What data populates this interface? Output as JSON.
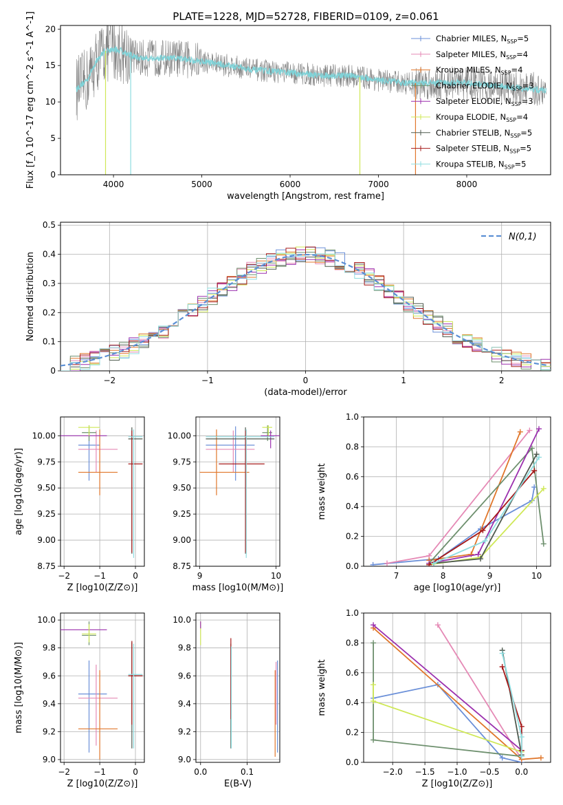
{
  "title": "PLATE=1228, MJD=52728, FIBERID=0109, z=0.061",
  "legend_models": [
    {
      "name": "Chabrier MILES",
      "nssp": "5",
      "color": "#6a8fd8"
    },
    {
      "name": "Salpeter MILES",
      "nssp": "4",
      "color": "#e589b5"
    },
    {
      "name": "Kroupa MILES",
      "nssp": "4",
      "color": "#e0762a"
    },
    {
      "name": "Chabrier ELODIE",
      "nssp": "3",
      "color": "#6d8f6d"
    },
    {
      "name": "Salpeter ELODIE",
      "nssp": "3",
      "color": "#9b2fae"
    },
    {
      "name": "Kroupa ELODIE",
      "nssp": "4",
      "color": "#cfe856"
    },
    {
      "name": "Chabrier STELIB",
      "nssp": "5",
      "color": "#4f5a4f"
    },
    {
      "name": "Salpeter STELIB",
      "nssp": "5",
      "color": "#a51818"
    },
    {
      "name": "Kroupa STELIB",
      "nssp": "5",
      "color": "#8fdde0"
    }
  ],
  "chart_data": [
    {
      "id": "spectrum",
      "type": "line",
      "xlabel": "wavelength [Angstrom, rest frame]",
      "ylabel": "Flux [f_λ 10^-17 erg cm^-2 s^-1 A^-1]",
      "xlim": [
        3400,
        8950
      ],
      "ylim": [
        0,
        20.5
      ],
      "xticks": [
        4000,
        5000,
        6000,
        7000,
        8000
      ],
      "yticks": [
        0,
        5,
        10,
        15,
        20
      ],
      "grid": false,
      "legend": "top-right",
      "data_color": "#808080",
      "model_color": "#7fd3d8",
      "continuum": [
        [
          3580,
          11.8
        ],
        [
          3700,
          13
        ],
        [
          3800,
          15.5
        ],
        [
          3900,
          17
        ],
        [
          4000,
          17.2
        ],
        [
          4100,
          17
        ],
        [
          4200,
          16.4
        ],
        [
          4300,
          16
        ],
        [
          4500,
          16
        ],
        [
          4700,
          16
        ],
        [
          5000,
          15.6
        ],
        [
          5300,
          15
        ],
        [
          5600,
          14.4
        ],
        [
          6000,
          14
        ],
        [
          6400,
          13.6
        ],
        [
          6700,
          13.6
        ],
        [
          7000,
          13
        ],
        [
          7300,
          12.6
        ],
        [
          7600,
          12.6
        ],
        [
          8000,
          12.6
        ],
        [
          8500,
          12
        ],
        [
          8950,
          11.5
        ]
      ]
    },
    {
      "id": "residuals",
      "type": "histogram",
      "xlabel": "(data-model)/error",
      "ylabel": "Normed distribution",
      "xlim": [
        -2.5,
        2.5
      ],
      "ylim": [
        0,
        0.51
      ],
      "xticks": [
        -2,
        -1,
        0,
        1,
        2
      ],
      "yticks": [
        0,
        0.1,
        0.2,
        0.3,
        0.4,
        0.5
      ],
      "grid": true,
      "legend": "top-right",
      "gaussian_label": "N(0,1)",
      "gaussian_color": "#5b8fd4"
    },
    {
      "id": "age_vs_Z",
      "type": "errorbar",
      "xlabel": "Z [log10(Z/Z⊙)]",
      "ylabel": "age [log10(age/yr)]",
      "xlim": [
        -2.1,
        0.25
      ],
      "ylim": [
        8.75,
        10.18
      ],
      "xticks": [
        -2,
        -1,
        0
      ],
      "yticks": [
        8.75,
        9.0,
        9.25,
        9.5,
        9.75,
        10.0
      ],
      "ytick_labels": [
        "8.75",
        "9.00",
        "9.25",
        "9.50",
        "9.75",
        "10.00"
      ],
      "grid": true,
      "points": [
        {
          "x": -1.3,
          "xlo": -1.6,
          "xhi": -1.0,
          "y": 9.91,
          "ylo": 9.57,
          "yhi": 10.09,
          "color": "#6a8fd8"
        },
        {
          "x": -1.1,
          "xlo": -1.6,
          "xhi": -0.5,
          "y": 9.87,
          "ylo": 9.65,
          "yhi": 10.05,
          "color": "#e589b5"
        },
        {
          "x": -1.0,
          "xlo": -1.6,
          "xhi": -0.5,
          "y": 9.65,
          "ylo": 9.43,
          "yhi": 10.06,
          "color": "#e0762a"
        },
        {
          "x": -1.3,
          "xlo": -1.5,
          "xhi": -1.1,
          "y": 10.03,
          "ylo": 9.95,
          "yhi": 10.1,
          "color": "#6d8f6d"
        },
        {
          "x": -2.0,
          "xlo": -2.1,
          "xhi": -0.8,
          "y": 10.0,
          "ylo": 10.0,
          "yhi": 10.0,
          "color": "#9b2fae"
        },
        {
          "x": -1.3,
          "xlo": -1.6,
          "xhi": -1.0,
          "y": 10.08,
          "ylo": 10.0,
          "yhi": 10.1,
          "color": "#cfe856"
        },
        {
          "x": -0.1,
          "xlo": -0.2,
          "xhi": 0.2,
          "y": 9.97,
          "ylo": 8.87,
          "yhi": 10.08,
          "color": "#4f5a4f"
        },
        {
          "x": -0.1,
          "xlo": -0.2,
          "xhi": 0.2,
          "y": 9.73,
          "ylo": 8.88,
          "yhi": 10.05,
          "color": "#a51818"
        },
        {
          "x": -0.05,
          "xlo": -0.2,
          "xhi": 0.2,
          "y": 9.99,
          "ylo": 8.83,
          "yhi": 10.06,
          "color": "#8fdde0"
        }
      ]
    },
    {
      "id": "age_vs_mass",
      "type": "errorbar",
      "xlabel": "mass [log10(M/M⊙)]",
      "ylabel": "",
      "xlim": [
        8.95,
        10.05
      ],
      "ylim": [
        8.75,
        10.18
      ],
      "xticks": [
        9,
        10
      ],
      "yticks": [
        8.75,
        9.0,
        9.25,
        9.5,
        9.75,
        10.0
      ],
      "ytick_labels": [
        "8.75",
        "9.00",
        "9.25",
        "9.50",
        "9.75",
        "10.00"
      ],
      "grid": true,
      "points": [
        {
          "x": 9.47,
          "xlo": 9.08,
          "xhi": 9.72,
          "y": 9.91,
          "ylo": 9.57,
          "yhi": 10.09,
          "color": "#6a8fd8"
        },
        {
          "x": 9.44,
          "xlo": 9.08,
          "xhi": 9.72,
          "y": 9.87,
          "ylo": 9.65,
          "yhi": 10.05,
          "color": "#e589b5"
        },
        {
          "x": 9.22,
          "xlo": 9.0,
          "xhi": 9.65,
          "y": 9.65,
          "ylo": 9.43,
          "yhi": 10.06,
          "color": "#e0762a"
        },
        {
          "x": 9.89,
          "xlo": 9.82,
          "xhi": 9.95,
          "y": 10.03,
          "ylo": 9.95,
          "yhi": 10.1,
          "color": "#6d8f6d"
        },
        {
          "x": 9.93,
          "xlo": 9.8,
          "xhi": 10.05,
          "y": 10.0,
          "ylo": 9.88,
          "yhi": 10.05,
          "color": "#9b2fae"
        },
        {
          "x": 9.9,
          "xlo": 9.82,
          "xhi": 9.95,
          "y": 10.08,
          "ylo": 10.0,
          "yhi": 10.1,
          "color": "#cfe856"
        },
        {
          "x": 9.6,
          "xlo": 9.08,
          "xhi": 9.98,
          "y": 9.97,
          "ylo": 8.87,
          "yhi": 10.08,
          "color": "#4f5a4f"
        },
        {
          "x": 9.6,
          "xlo": 9.25,
          "xhi": 9.85,
          "y": 9.73,
          "ylo": 8.88,
          "yhi": 10.05,
          "color": "#a51818"
        },
        {
          "x": 9.61,
          "xlo": 9.08,
          "xhi": 9.98,
          "y": 9.99,
          "ylo": 8.83,
          "yhi": 10.06,
          "color": "#8fdde0"
        }
      ]
    },
    {
      "id": "mass_weight_vs_age",
      "type": "line",
      "xlabel": "age [log10(age/yr)]",
      "ylabel": "mass weight",
      "xlim": [
        6.3,
        10.3
      ],
      "ylim": [
        0,
        1.0
      ],
      "xticks": [
        7,
        8,
        9,
        10
      ],
      "yticks": [
        0,
        0.2,
        0.4,
        0.6,
        0.8,
        1.0
      ],
      "ytick_labels": [
        "0.0",
        "0.2",
        "0.4",
        "0.6",
        "0.8",
        "1.0"
      ],
      "grid": true,
      "series": [
        {
          "color": "#6a8fd8",
          "points": [
            [
              6.5,
              0.01
            ],
            [
              7.9,
              0.05
            ],
            [
              8.8,
              0.25
            ],
            [
              9.9,
              0.44
            ],
            [
              9.95,
              0.53
            ]
          ]
        },
        {
          "color": "#e589b5",
          "points": [
            [
              6.8,
              0.02
            ],
            [
              7.7,
              0.07
            ],
            [
              9.85,
              0.91
            ]
          ]
        },
        {
          "color": "#e0762a",
          "points": [
            [
              7.7,
              0.04
            ],
            [
              8.6,
              0.08
            ],
            [
              9.65,
              0.9
            ]
          ]
        },
        {
          "color": "#6d8f6d",
          "points": [
            [
              7.7,
              0.02
            ],
            [
              9.9,
              0.79
            ],
            [
              10.15,
              0.15
            ]
          ]
        },
        {
          "color": "#9b2fae",
          "points": [
            [
              7.7,
              0.02
            ],
            [
              8.75,
              0.08
            ],
            [
              10.05,
              0.92
            ]
          ]
        },
        {
          "color": "#cfe856",
          "points": [
            [
              7.7,
              0.01
            ],
            [
              8.8,
              0.06
            ],
            [
              10.15,
              0.52
            ]
          ]
        },
        {
          "color": "#4f5a4f",
          "points": [
            [
              7.8,
              0.02
            ],
            [
              8.8,
              0.05
            ],
            [
              10.0,
              0.75
            ]
          ]
        },
        {
          "color": "#a51818",
          "points": [
            [
              7.7,
              0.01
            ],
            [
              8.85,
              0.24
            ],
            [
              9.95,
              0.64
            ]
          ]
        },
        {
          "color": "#8fdde0",
          "points": [
            [
              7.8,
              0.02
            ],
            [
              8.9,
              0.17
            ],
            [
              10.05,
              0.73
            ]
          ]
        }
      ]
    },
    {
      "id": "mass_vs_Z",
      "type": "errorbar",
      "xlabel": "Z [log10(Z/Z⊙)]",
      "ylabel": "mass [log10(M/M⊙)]",
      "xlim": [
        -2.1,
        0.25
      ],
      "ylim": [
        8.98,
        10.05
      ],
      "xticks": [
        -2,
        -1,
        0
      ],
      "yticks": [
        9.0,
        9.2,
        9.4,
        9.6,
        9.8,
        10.0
      ],
      "ytick_labels": [
        "9.0",
        "9.2",
        "9.4",
        "9.6",
        "9.8",
        "10.0"
      ],
      "grid": true,
      "points": [
        {
          "x": -1.3,
          "xlo": -1.6,
          "xhi": -0.8,
          "y": 9.47,
          "ylo": 9.05,
          "yhi": 9.71,
          "color": "#6a8fd8"
        },
        {
          "x": -1.1,
          "xlo": -1.6,
          "xhi": -0.5,
          "y": 9.44,
          "ylo": 9.1,
          "yhi": 9.68,
          "color": "#e589b5"
        },
        {
          "x": -1.0,
          "xlo": -1.6,
          "xhi": -0.5,
          "y": 9.22,
          "ylo": 9.0,
          "yhi": 9.64,
          "color": "#e0762a"
        },
        {
          "x": -1.3,
          "xlo": -1.5,
          "xhi": -1.1,
          "y": 9.89,
          "ylo": 9.82,
          "yhi": 9.99,
          "color": "#6d8f6d"
        },
        {
          "x": -1.5,
          "xlo": -2.1,
          "xhi": -0.8,
          "y": 9.93,
          "ylo": 9.93,
          "yhi": 9.93,
          "color": "#9b2fae"
        },
        {
          "x": -1.3,
          "xlo": -1.5,
          "xhi": -1.1,
          "y": 9.9,
          "ylo": 9.84,
          "yhi": 9.97,
          "color": "#cfe856"
        },
        {
          "x": -0.1,
          "xlo": -0.2,
          "xhi": 0.2,
          "y": 9.6,
          "ylo": 9.08,
          "yhi": 9.84,
          "color": "#4f5a4f"
        },
        {
          "x": -0.1,
          "xlo": -0.2,
          "xhi": 0.2,
          "y": 9.6,
          "ylo": 9.25,
          "yhi": 9.85,
          "color": "#a51818"
        },
        {
          "x": -0.05,
          "xlo": -0.2,
          "xhi": 0.2,
          "y": 9.61,
          "ylo": 9.08,
          "yhi": 9.83,
          "color": "#8fdde0"
        }
      ]
    },
    {
      "id": "mass_vs_ebv",
      "type": "errorbar",
      "xlabel": "E(B-V)",
      "ylabel": "",
      "xlim": [
        -0.01,
        0.17
      ],
      "ylim": [
        8.98,
        10.05
      ],
      "xticks": [
        0.0,
        0.1
      ],
      "xtick_labels": [
        "0.0",
        "0.1"
      ],
      "yticks": [
        9.0,
        9.2,
        9.4,
        9.6,
        9.8,
        10.0
      ],
      "ytick_labels": [
        "9.0",
        "9.2",
        "9.4",
        "9.6",
        "9.8",
        "10.0"
      ],
      "grid": true,
      "points": [
        {
          "x": 0.0,
          "xlo": 0.0,
          "xhi": 0.0,
          "y": 9.92,
          "ylo": 9.82,
          "yhi": 9.99,
          "color": "#cfe856"
        },
        {
          "x": 0.0,
          "xlo": 0.0,
          "xhi": 0.0,
          "y": 9.96,
          "ylo": 9.94,
          "yhi": 9.99,
          "color": "#9b2fae"
        },
        {
          "x": 0.065,
          "xlo": 0.065,
          "xhi": 0.065,
          "y": 9.6,
          "ylo": 9.08,
          "yhi": 9.83,
          "color": "#4f5a4f"
        },
        {
          "x": 0.065,
          "xlo": 0.065,
          "xhi": 0.065,
          "y": 9.6,
          "ylo": 9.29,
          "yhi": 9.87,
          "color": "#a51818"
        },
        {
          "x": 0.066,
          "xlo": 0.066,
          "xhi": 0.066,
          "y": 9.61,
          "ylo": 9.08,
          "yhi": 9.81,
          "color": "#8fdde0"
        },
        {
          "x": 0.16,
          "xlo": 0.16,
          "xhi": 0.16,
          "y": 9.44,
          "ylo": 9.02,
          "yhi": 9.64,
          "color": "#e0762a"
        },
        {
          "x": 0.162,
          "xlo": 0.162,
          "xhi": 0.162,
          "y": 9.47,
          "ylo": 9.25,
          "yhi": 9.7,
          "color": "#e589b5"
        },
        {
          "x": 0.165,
          "xlo": 0.165,
          "xhi": 0.165,
          "y": 9.47,
          "ylo": 9.05,
          "yhi": 9.71,
          "color": "#6a8fd8"
        }
      ]
    },
    {
      "id": "mass_weight_vs_Z",
      "type": "line",
      "xlabel": "Z [log10(Z/Z⊙)]",
      "ylabel": "mass weight",
      "xlim": [
        -2.45,
        0.45
      ],
      "ylim": [
        0,
        1.0
      ],
      "xticks": [
        -2.0,
        -1.5,
        -1.0,
        -0.5,
        0.0
      ],
      "xtick_labels": [
        "−2.0",
        "−1.5",
        "−1.0",
        "−0.5",
        "0.0"
      ],
      "yticks": [
        0,
        0.2,
        0.4,
        0.6,
        0.8,
        1.0
      ],
      "ytick_labels": [
        "0.0",
        "0.2",
        "0.4",
        "0.6",
        "0.8",
        "1.0"
      ],
      "grid": true,
      "series": [
        {
          "color": "#6a8fd8",
          "points": [
            [
              -2.3,
              0.43
            ],
            [
              -1.3,
              0.52
            ],
            [
              -0.3,
              0.03
            ],
            [
              0.0,
              0.0
            ]
          ]
        },
        {
          "color": "#e589b5",
          "points": [
            [
              -1.3,
              0.92
            ],
            [
              0.0,
              0.02
            ]
          ]
        },
        {
          "color": "#e0762a",
          "points": [
            [
              -2.3,
              0.9
            ],
            [
              0.0,
              0.02
            ],
            [
              0.3,
              0.03
            ]
          ]
        },
        {
          "color": "#6d8f6d",
          "points": [
            [
              -2.3,
              0.8
            ],
            [
              -2.3,
              0.15
            ],
            [
              0.0,
              0.04
            ]
          ]
        },
        {
          "color": "#9b2fae",
          "points": [
            [
              -2.3,
              0.92
            ],
            [
              0.0,
              0.08
            ]
          ]
        },
        {
          "color": "#cfe856",
          "points": [
            [
              -2.3,
              0.52
            ],
            [
              -2.3,
              0.41
            ],
            [
              0.0,
              0.07
            ]
          ]
        },
        {
          "color": "#4f5a4f",
          "points": [
            [
              -0.3,
              0.75
            ],
            [
              0.0,
              0.05
            ]
          ]
        },
        {
          "color": "#a51818",
          "points": [
            [
              -0.3,
              0.64
            ],
            [
              0.0,
              0.24
            ],
            [
              0.0,
              0.08
            ]
          ]
        },
        {
          "color": "#8fdde0",
          "points": [
            [
              -0.3,
              0.73
            ],
            [
              0.0,
              0.17
            ],
            [
              0.0,
              0.04
            ]
          ]
        }
      ]
    }
  ]
}
